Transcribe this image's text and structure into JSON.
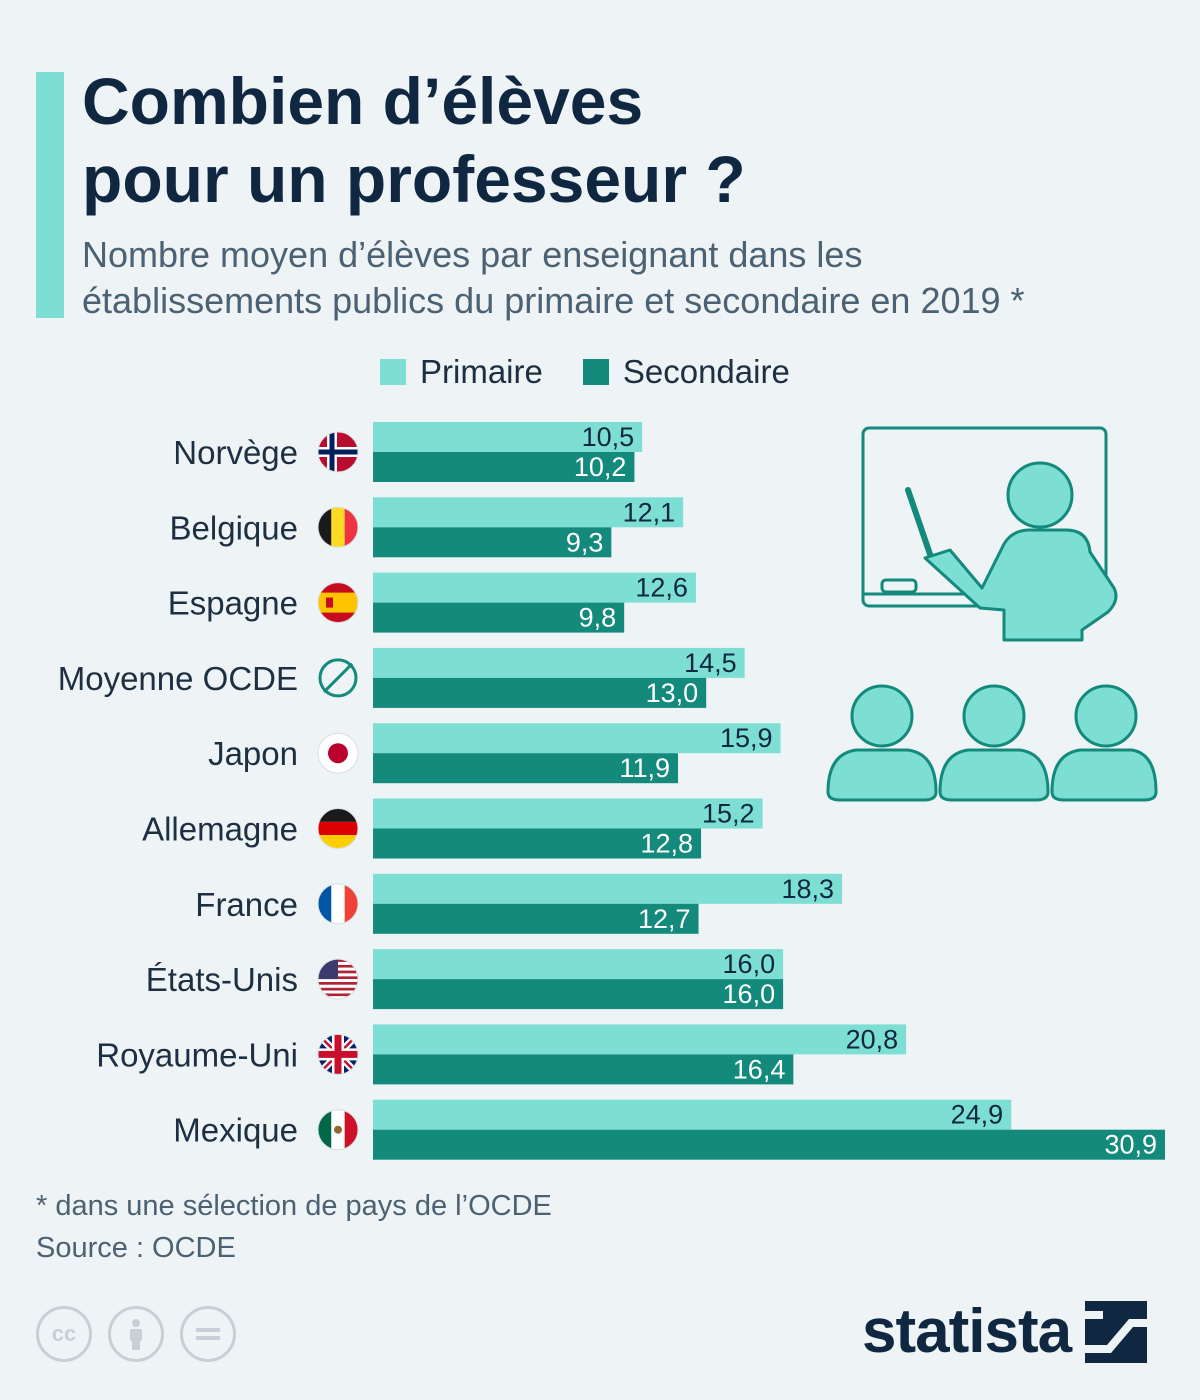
{
  "header": {
    "title_line1": "Combien d’élèves",
    "title_line2": "pour un professeur ?",
    "subtitle_line1": "Nombre moyen d’élèves par enseignant dans les",
    "subtitle_line2": "établissements publics du primaire et secondaire en 2019 *"
  },
  "legend": {
    "primary_label": "Primaire",
    "secondary_label": "Secondaire"
  },
  "colors": {
    "primary": "#7ddfd4",
    "secondary": "#138a7c",
    "text": "#0f2741",
    "accent": "#7ddfd4"
  },
  "chart_data": {
    "type": "bar",
    "orientation": "horizontal",
    "categories": [
      "Norvège",
      "Belgique",
      "Espagne",
      "Moyenne OCDE",
      "Japon",
      "Allemagne",
      "France",
      "États-Unis",
      "Royaume-Uni",
      "Mexique"
    ],
    "category_icons": [
      "norway-flag-icon",
      "belgium-flag-icon",
      "spain-flag-icon",
      "oecd-average-icon",
      "japan-flag-icon",
      "germany-flag-icon",
      "france-flag-icon",
      "usa-flag-icon",
      "uk-flag-icon",
      "mexico-flag-icon"
    ],
    "series": [
      {
        "name": "Primaire",
        "values": [
          10.5,
          12.1,
          12.6,
          14.5,
          15.9,
          15.2,
          18.3,
          16.0,
          20.8,
          24.9
        ]
      },
      {
        "name": "Secondaire",
        "values": [
          10.2,
          9.3,
          9.8,
          13.0,
          11.9,
          12.8,
          12.7,
          16.0,
          16.4,
          30.9
        ]
      }
    ],
    "value_labels": {
      "Primaire": [
        "10,5",
        "12,1",
        "12,6",
        "14,5",
        "15,9",
        "15,2",
        "18,3",
        "16,0",
        "20,8",
        "24,9"
      ],
      "Secondaire": [
        "10,2",
        "9,3",
        "9,8",
        "13,0",
        "11,9",
        "12,8",
        "12,7",
        "16,0",
        "16,4",
        "30,9"
      ]
    },
    "xlim": [
      0,
      30.9
    ],
    "grid": false,
    "legend_position": "top"
  },
  "footer": {
    "footnote": "* dans une sélection de pays de l’OCDE",
    "source": "Source : OCDE",
    "brand": "statista",
    "license_icons": [
      "cc-icon",
      "attribution-icon",
      "no-derivatives-icon"
    ]
  }
}
